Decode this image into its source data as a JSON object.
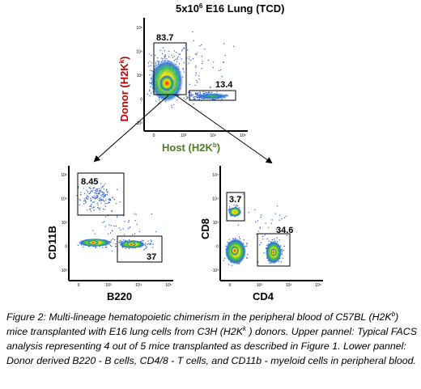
{
  "figure": {
    "top_panel": {
      "title": {
        "main": "5x10",
        "sup": "6",
        "rest": " E16 Lung (TCD)"
      },
      "ylabel": {
        "main": "Donor (H2K",
        "sup": "k",
        "end": ")"
      },
      "xlabel": {
        "main": "Host (H2K",
        "sup": "b",
        "end": ")"
      },
      "ylabel_color": "#c00000",
      "xlabel_color": "#4f7a28",
      "gates": [
        {
          "label": "83.7"
        },
        {
          "label": "13.4"
        }
      ]
    },
    "bottom_left_panel": {
      "ylabel": "CD11B",
      "xlabel": "B220",
      "gates": [
        {
          "label": "8.45"
        },
        {
          "label": "37"
        }
      ]
    },
    "bottom_right_panel": {
      "ylabel": "CD8",
      "xlabel": "CD4",
      "gates": [
        {
          "label": "3.7"
        },
        {
          "label": "34.6"
        }
      ]
    },
    "ticks": {
      "y": [
        "10⁵",
        "10⁴",
        "10³",
        "0",
        "-10³"
      ],
      "x": [
        "0",
        "10³",
        "10⁴",
        "10⁵"
      ]
    }
  },
  "caption": {
    "p1": "Figure 2: Multi-lineage hematopoietic chimerism in the peripheral blood of C57BL (H2K",
    "p1_sup1": "b",
    "p2": ") mice transplanted with E16 lung cells from C3H (H2K",
    "p2_sup2": "k",
    "p3": " ) donors. Upper pannel: Typical FACS analysis representing 4 out of 5 mice transplanted as described in Figure 1.  Lower pannel: Donor derived B220 - B cells, CD4/8 - T cells, and CD11b - myeloid cells in peripheral blood."
  }
}
